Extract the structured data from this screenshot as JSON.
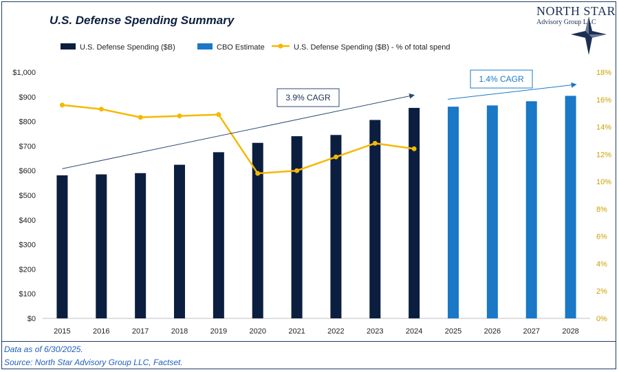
{
  "title": "U.S. Defense Spending Summary",
  "logo": {
    "line1": "NORTH STAR",
    "line2": "Advisory Group LLC",
    "icon": "compass-star-icon"
  },
  "footnotes": [
    "Data as of 6/30/2025.",
    "Source: North Star Advisory Group LLC, Factset."
  ],
  "colors": {
    "actual": "#0b1e40",
    "estimate": "#1a78c6",
    "line": "#f5b800",
    "axis_right": "#c9a100",
    "cagr_left": "#2f4a70",
    "cagr_right": "#1a78c6"
  },
  "chart_data": {
    "type": "bar",
    "categories": [
      "2015",
      "2016",
      "2017",
      "2018",
      "2019",
      "2020",
      "2021",
      "2022",
      "2023",
      "2024",
      "2025",
      "2026",
      "2027",
      "2028"
    ],
    "series": [
      {
        "name": "U.S. Defense Spending ($B)",
        "type": "bar",
        "values": [
          581,
          585,
          590,
          624,
          675,
          713,
          740,
          745,
          806,
          855,
          null,
          null,
          null,
          null
        ]
      },
      {
        "name": "CBO Estimate",
        "type": "bar",
        "values": [
          null,
          null,
          null,
          null,
          null,
          null,
          null,
          null,
          null,
          null,
          860,
          865,
          882,
          904
        ]
      },
      {
        "name": "U.S. Defense Spending ($B) - % of total spend",
        "type": "line",
        "axis": "right",
        "values": [
          15.6,
          15.3,
          14.7,
          14.8,
          14.9,
          10.6,
          10.8,
          11.8,
          12.8,
          12.4,
          null,
          null,
          null,
          null
        ]
      }
    ],
    "y_left": {
      "min": 0,
      "max": 1000,
      "step": 100,
      "ticks": [
        "$0",
        "$100",
        "$200",
        "$300",
        "$400",
        "$500",
        "$600",
        "$700",
        "$800",
        "$900",
        "$1,000"
      ]
    },
    "y_right": {
      "min": 0,
      "max": 18,
      "step": 2,
      "ticks": [
        "0%",
        "2%",
        "4%",
        "6%",
        "8%",
        "10%",
        "12%",
        "14%",
        "16%",
        "18%"
      ]
    },
    "annotations": [
      {
        "label": "3.9% CAGR",
        "from_year": "2015",
        "from_value": 608,
        "to_year": "2024",
        "to_value": 907
      },
      {
        "label": "1.4% CAGR",
        "from_year": "2025",
        "from_value": 890,
        "to_year": "2028",
        "to_value": 950
      }
    ],
    "legend_position": "top-left",
    "grid": false
  }
}
